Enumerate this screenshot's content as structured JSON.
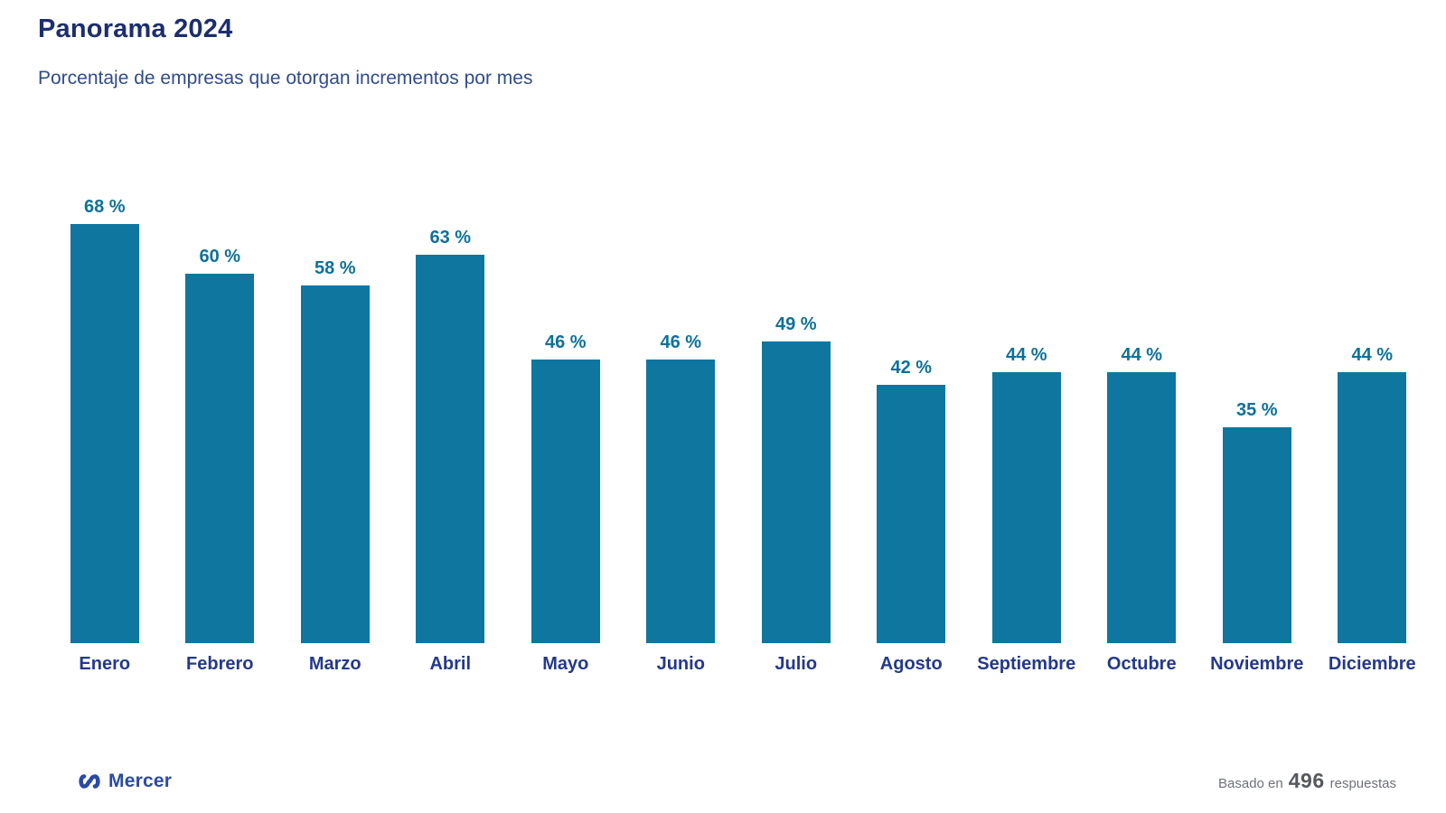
{
  "header": {
    "title": "Panorama 2024",
    "subtitle": "Porcentaje de empresas que otorgan incrementos por mes"
  },
  "chart_data": {
    "type": "bar",
    "title": "Panorama 2024",
    "subtitle": "Porcentaje de empresas que otorgan incrementos por mes",
    "categories": [
      "Enero",
      "Febrero",
      "Marzo",
      "Abril",
      "Mayo",
      "Junio",
      "Julio",
      "Agosto",
      "Septiembre",
      "Octubre",
      "Noviembre",
      "Diciembre"
    ],
    "values": [
      68,
      60,
      58,
      63,
      46,
      46,
      49,
      42,
      44,
      44,
      35,
      44
    ],
    "value_suffix": " %",
    "xlabel": "",
    "ylabel": "",
    "ylim": [
      0,
      100
    ],
    "grid": false,
    "legend": "none",
    "bar_color": "#0f76a0",
    "value_label_color": "#0e7199",
    "category_label_color": "#24398b"
  },
  "footer": {
    "brand": "Mercer",
    "note_prefix": "Basado en",
    "note_count": "496",
    "note_suffix": "respuestas"
  },
  "colors": {
    "title": "#1b2e6e",
    "subtitle": "#2f4c8c",
    "brand_blue": "#2b4aa3",
    "note_gray": "#6e7278"
  }
}
